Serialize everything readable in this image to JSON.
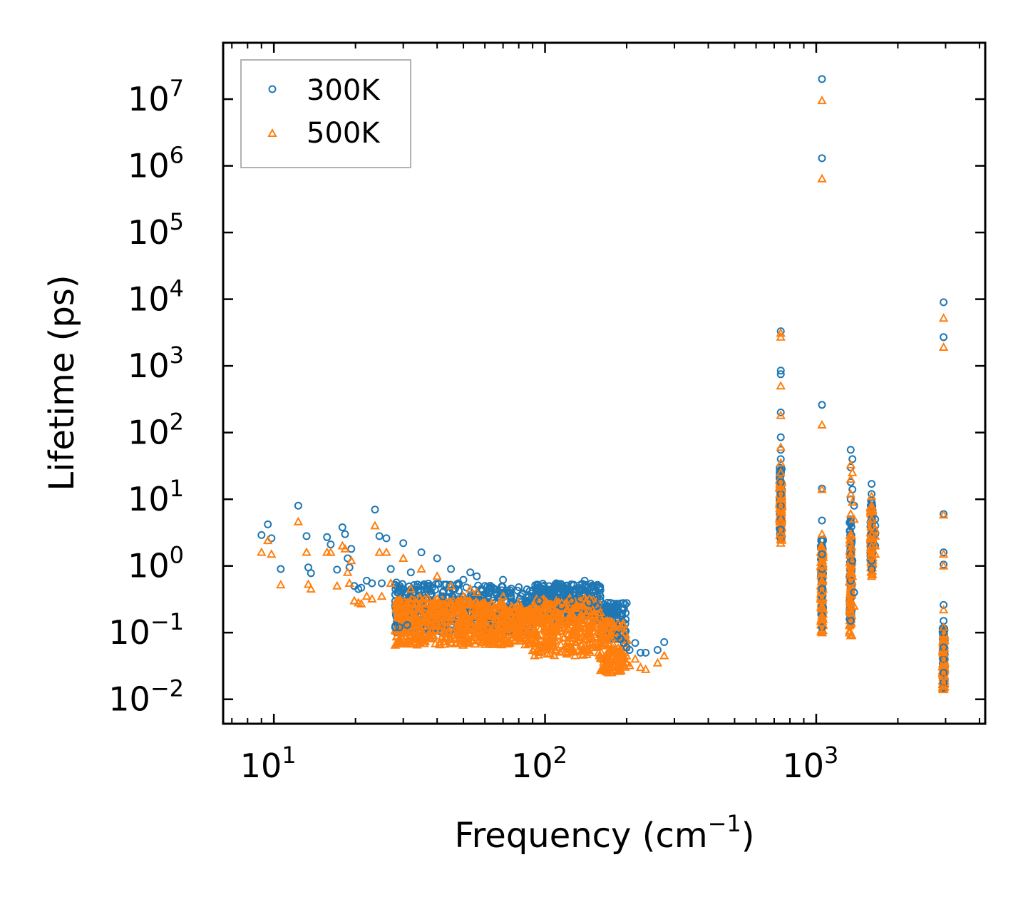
{
  "chart_data": {
    "type": "scatter",
    "title": "",
    "xlabel": "Frequency (cm",
    "xlabel_sup": "−1",
    "xlabel_end": ")",
    "ylabel": "Lifetime (ps)",
    "xscale": "log",
    "yscale": "log",
    "xlim": [
      6.5,
      4200
    ],
    "ylim": [
      0.0043,
      70000000
    ],
    "x_ticks": [
      {
        "value": 10,
        "base": "10",
        "exp": "1"
      },
      {
        "value": 100,
        "base": "10",
        "exp": "2"
      },
      {
        "value": 1000,
        "base": "10",
        "exp": "3"
      }
    ],
    "y_ticks": [
      {
        "value": 0.01,
        "base": "10",
        "exp": "−2"
      },
      {
        "value": 0.1,
        "base": "10",
        "exp": "−1"
      },
      {
        "value": 1,
        "base": "10",
        "exp": "0"
      },
      {
        "value": 10,
        "base": "10",
        "exp": "1"
      },
      {
        "value": 100,
        "base": "10",
        "exp": "2"
      },
      {
        "value": 1000,
        "base": "10",
        "exp": "3"
      },
      {
        "value": 10000,
        "base": "10",
        "exp": "4"
      },
      {
        "value": 100000,
        "base": "10",
        "exp": "5"
      },
      {
        "value": 1000000,
        "base": "10",
        "exp": "6"
      },
      {
        "value": 10000000,
        "base": "10",
        "exp": "7"
      }
    ],
    "legend_position": "top-left",
    "series": [
      {
        "name": "300K",
        "marker": "circle",
        "color": "#1f77b4",
        "x": [
          9.0,
          9.5,
          9.8,
          10.6,
          12.3,
          13.2,
          13.4,
          13.7,
          15.7,
          16.2,
          17.1,
          17.9,
          18.3,
          18.7,
          19.0,
          19.3,
          19.8,
          20.5,
          21.0,
          22.0,
          23.0,
          23.6,
          24.5,
          25.0,
          26.0,
          27.0,
          28.0,
          28.5,
          29.0,
          30.0,
          31.0,
          32.0,
          33.0,
          35.0,
          37.0,
          40.0,
          42.0,
          45.0,
          48.0,
          50.0,
          53.0,
          56.0,
          60.0,
          65.0,
          70.0,
          75.0,
          80.0,
          85.0,
          90.0,
          95.0,
          100.0,
          105.0,
          110.0,
          115.0,
          120.0,
          125.0,
          130.0,
          135.0,
          140.0,
          145.0,
          150.0,
          155.0,
          160.0,
          165.0,
          170.0,
          175.0,
          180.0,
          185.0,
          190.0,
          195.0,
          200.0,
          205.0,
          215.0,
          225.0,
          235.0,
          260.0,
          275.0,
          740.0,
          740.0,
          740.0,
          740.0,
          740.0,
          740.0,
          740.0,
          740.0,
          740.0,
          740.0,
          740.0,
          740.0,
          740.0,
          740.0,
          1050.0,
          1050.0,
          1050.0,
          1050.0,
          1050.0,
          1050.0,
          1050.0,
          1050.0,
          1050.0,
          1050.0,
          1050.0,
          1050.0,
          1050.0,
          1340.0,
          1340.0,
          1340.0,
          1340.0,
          1340.0,
          1340.0,
          1340.0,
          1340.0,
          1340.0,
          1360.0,
          1360.0,
          1360.0,
          1380.0,
          1380.0,
          1600.0,
          1600.0,
          1600.0,
          1600.0,
          1600.0,
          1600.0,
          1600.0,
          1600.0,
          1650.0,
          1650.0,
          1650.0,
          1650.0,
          2950.0,
          2950.0,
          2950.0,
          2950.0,
          2950.0,
          2950.0,
          2950.0,
          2950.0,
          2950.0,
          2950.0,
          2950.0,
          2950.0,
          2950.0
        ],
        "y": [
          2.9,
          4.2,
          2.6,
          0.9,
          8.0,
          2.8,
          0.95,
          0.78,
          2.7,
          2.1,
          0.88,
          3.8,
          3.0,
          1.3,
          0.95,
          1.8,
          0.5,
          0.45,
          0.47,
          0.6,
          0.55,
          7.0,
          2.8,
          0.55,
          2.6,
          0.9,
          0.12,
          0.4,
          0.12,
          2.2,
          0.13,
          0.8,
          0.4,
          1.6,
          0.5,
          1.3,
          0.35,
          0.9,
          0.55,
          0.62,
          0.8,
          0.7,
          0.5,
          0.45,
          0.62,
          0.35,
          0.48,
          0.28,
          0.42,
          0.3,
          0.45,
          0.35,
          0.55,
          0.25,
          0.5,
          0.3,
          0.45,
          0.32,
          0.6,
          0.28,
          0.4,
          0.25,
          0.35,
          0.22,
          0.28,
          0.2,
          0.25,
          0.09,
          0.08,
          0.07,
          0.06,
          0.055,
          0.07,
          0.05,
          0.05,
          0.055,
          0.072,
          3300,
          850,
          750,
          200,
          85,
          55,
          40,
          25,
          18,
          12,
          8,
          5,
          3.5,
          2.6,
          20000000,
          1300000,
          260,
          14.5,
          4.8,
          1.5,
          0.9,
          0.6,
          0.45,
          0.35,
          0.25,
          0.18,
          0.12,
          55,
          30,
          18,
          10,
          5,
          3,
          1.5,
          0.6,
          0.15,
          40,
          14,
          1.2,
          8,
          0.4,
          17,
          12,
          8,
          5,
          3,
          2,
          1.2,
          0.9,
          5,
          4,
          3,
          2,
          9000,
          2700,
          6,
          1.6,
          1.05,
          0.26,
          0.15,
          0.1,
          0.06,
          0.04,
          0.025,
          0.018,
          0.015
        ]
      },
      {
        "name": "500K",
        "marker": "triangle",
        "color": "#ff7f0e",
        "x": [
          9.0,
          9.5,
          9.8,
          10.6,
          12.3,
          13.2,
          13.4,
          13.7,
          15.7,
          16.2,
          17.1,
          17.9,
          18.3,
          18.7,
          19.0,
          19.3,
          19.8,
          20.5,
          21.0,
          22.0,
          23.0,
          23.6,
          24.5,
          25.0,
          26.0,
          27.0,
          28.0,
          28.5,
          29.0,
          30.0,
          31.0,
          32.0,
          33.0,
          35.0,
          37.0,
          40.0,
          42.0,
          45.0,
          48.0,
          50.0,
          53.0,
          56.0,
          60.0,
          65.0,
          70.0,
          75.0,
          80.0,
          85.0,
          90.0,
          95.0,
          100.0,
          105.0,
          110.0,
          115.0,
          120.0,
          125.0,
          130.0,
          135.0,
          140.0,
          145.0,
          150.0,
          155.0,
          160.0,
          165.0,
          170.0,
          175.0,
          180.0,
          185.0,
          190.0,
          195.0,
          200.0,
          205.0,
          215.0,
          225.0,
          235.0,
          260.0,
          275.0,
          740.0,
          740.0,
          740.0,
          740.0,
          740.0,
          740.0,
          740.0,
          740.0,
          740.0,
          740.0,
          740.0,
          740.0,
          740.0,
          740.0,
          1050.0,
          1050.0,
          1050.0,
          1050.0,
          1050.0,
          1050.0,
          1050.0,
          1050.0,
          1050.0,
          1050.0,
          1050.0,
          1050.0,
          1050.0,
          1340.0,
          1340.0,
          1340.0,
          1340.0,
          1340.0,
          1340.0,
          1340.0,
          1340.0,
          1340.0,
          1360.0,
          1360.0,
          1360.0,
          1380.0,
          1380.0,
          1600.0,
          1600.0,
          1600.0,
          1600.0,
          1600.0,
          1600.0,
          1600.0,
          1600.0,
          1650.0,
          1650.0,
          1650.0,
          1650.0,
          2950.0,
          2950.0,
          2950.0,
          2950.0,
          2950.0,
          2950.0,
          2950.0,
          2950.0,
          2950.0,
          2950.0,
          2950.0,
          2950.0,
          2950.0
        ],
        "y": [
          1.6,
          2.4,
          1.5,
          0.52,
          4.6,
          1.6,
          0.53,
          0.45,
          1.6,
          1.6,
          0.5,
          2.0,
          1.8,
          0.8,
          0.55,
          1.2,
          0.3,
          0.28,
          0.27,
          0.35,
          0.32,
          4.0,
          1.6,
          0.35,
          1.6,
          0.55,
          0.065,
          0.25,
          0.07,
          1.3,
          0.075,
          0.45,
          0.22,
          0.9,
          0.28,
          0.7,
          0.2,
          0.5,
          0.3,
          0.35,
          0.45,
          0.4,
          0.28,
          0.25,
          0.35,
          0.2,
          0.28,
          0.15,
          0.24,
          0.17,
          0.25,
          0.2,
          0.3,
          0.14,
          0.28,
          0.17,
          0.25,
          0.18,
          0.33,
          0.15,
          0.22,
          0.14,
          0.2,
          0.12,
          0.15,
          0.1,
          0.13,
          0.05,
          0.045,
          0.04,
          0.035,
          0.032,
          0.04,
          0.03,
          0.028,
          0.035,
          0.045,
          3100,
          500,
          2700,
          180,
          60,
          35,
          25,
          15,
          10,
          7,
          5,
          3,
          2.5,
          2.2,
          9500000,
          640000,
          130,
          14,
          3.0,
          1.0,
          0.6,
          0.4,
          0.3,
          0.25,
          0.18,
          0.14,
          0.1,
          33,
          20,
          12,
          6,
          3,
          1.5,
          0.8,
          0.3,
          0.09,
          25,
          9,
          0.7,
          5,
          0.25,
          11,
          8,
          5,
          3,
          2,
          1.4,
          0.8,
          0.7,
          3.5,
          2.8,
          2,
          1.5,
          5200,
          1900,
          5.8,
          1.5,
          1.0,
          0.22,
          0.12,
          0.08,
          0.05,
          0.035,
          0.022,
          0.016,
          0.014
        ]
      }
    ]
  }
}
